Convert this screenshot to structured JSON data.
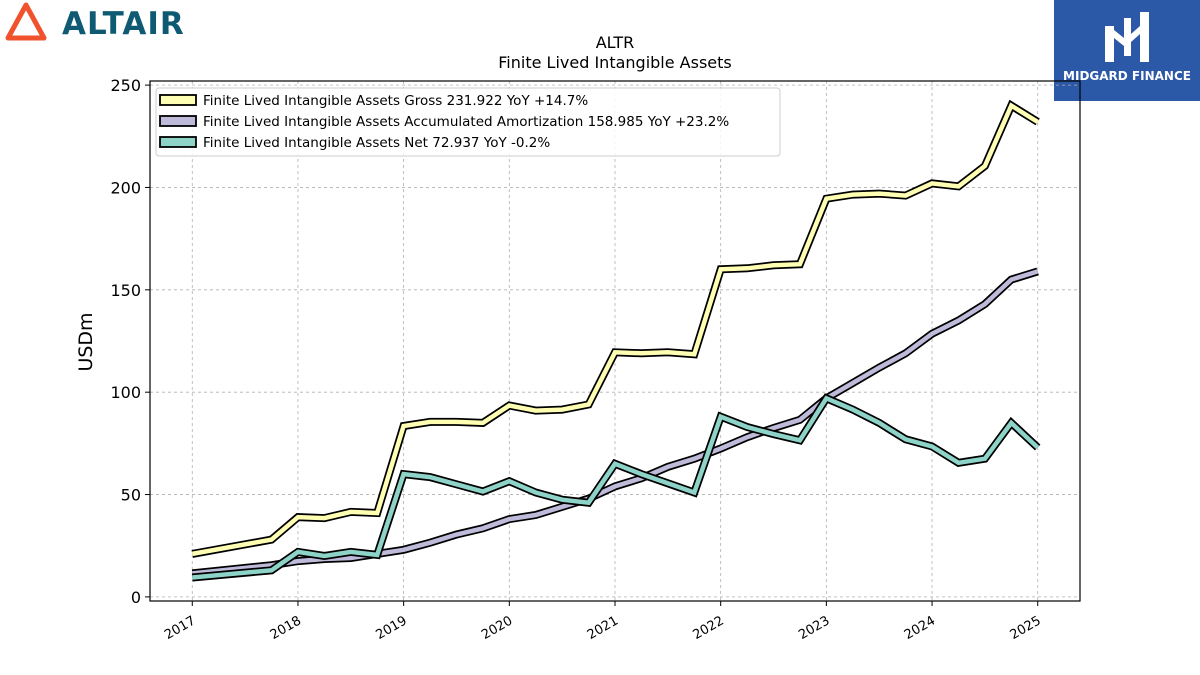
{
  "brand": {
    "name": "ALTAIR",
    "logo_icon": "altair-triangle-icon",
    "logo_color": "#f0522e"
  },
  "partner": {
    "name": "MIDGARD FINANCE",
    "logo_icon": "midgard-monogram-icon",
    "bg_color": "#2c58a8"
  },
  "chart_data": {
    "type": "line",
    "title": "ALTR",
    "subtitle": "Finite Lived Intangible Assets",
    "xlabel": "",
    "ylabel": "USDm",
    "xlim": [
      2016.6,
      2025.4
    ],
    "ylim": [
      -2,
      252
    ],
    "x_ticks": [
      2017,
      2018,
      2019,
      2020,
      2021,
      2022,
      2023,
      2024,
      2025
    ],
    "x_tick_labels": [
      "2017",
      "2018",
      "2019",
      "2020",
      "2021",
      "2022",
      "2023",
      "2024",
      "2025"
    ],
    "y_ticks": [
      0,
      50,
      100,
      150,
      200,
      250
    ],
    "y_tick_labels": [
      "0",
      "50",
      "100",
      "150",
      "200",
      "250"
    ],
    "grid": true,
    "legend_position": "top-left",
    "x": [
      2017.0,
      2017.75,
      2018.0,
      2018.25,
      2018.5,
      2018.75,
      2019.0,
      2019.25,
      2019.5,
      2019.75,
      2020.0,
      2020.25,
      2020.5,
      2020.75,
      2021.0,
      2021.25,
      2021.5,
      2021.75,
      2022.0,
      2022.25,
      2022.5,
      2022.75,
      2023.0,
      2023.25,
      2023.5,
      2023.75,
      2024.0,
      2024.25,
      2024.5,
      2024.75,
      2025.0
    ],
    "series": [
      {
        "name": "Finite Lived Intangible Assets Gross",
        "legend": "Finite Lived Intangible Assets Gross  231.922 YoY +14.7%",
        "color": "#ffffb3",
        "values": [
          21,
          28,
          39,
          38.5,
          41.5,
          41,
          83.5,
          85.5,
          85.5,
          85,
          93.5,
          91,
          91.5,
          94,
          119.5,
          119,
          119.5,
          118.5,
          160,
          160.5,
          162,
          162.5,
          194.5,
          196.5,
          197,
          196,
          202,
          200.5,
          210.5,
          240,
          232
        ]
      },
      {
        "name": "Finite Lived Intangible Assets Accumulated Amortization",
        "legend": "Finite Lived Intangible Assets Accumulated Amortization  158.985 YoY +23.2%",
        "color": "#bebada",
        "values": [
          11.5,
          15.5,
          17.5,
          18.5,
          19,
          21,
          23,
          26.5,
          30.5,
          33.5,
          38,
          40,
          44,
          48,
          54,
          58,
          63.5,
          67.5,
          72.5,
          78,
          82.5,
          86.5,
          97,
          104.5,
          112,
          119,
          128.5,
          135,
          143,
          155,
          159
        ]
      },
      {
        "name": "Finite Lived Intangible Assets Net",
        "legend": "Finite Lived Intangible Assets Net  72.937 YoY -0.2%",
        "color": "#8dd3c7",
        "values": [
          9.5,
          13,
          22,
          20,
          22,
          20.5,
          60,
          58.5,
          55,
          51.5,
          56.5,
          51,
          47.5,
          46,
          65,
          60,
          55.5,
          51,
          88,
          83,
          79.5,
          76.5,
          97,
          91.5,
          85,
          77,
          73.5,
          65.5,
          67.5,
          85,
          73
        ]
      }
    ]
  }
}
